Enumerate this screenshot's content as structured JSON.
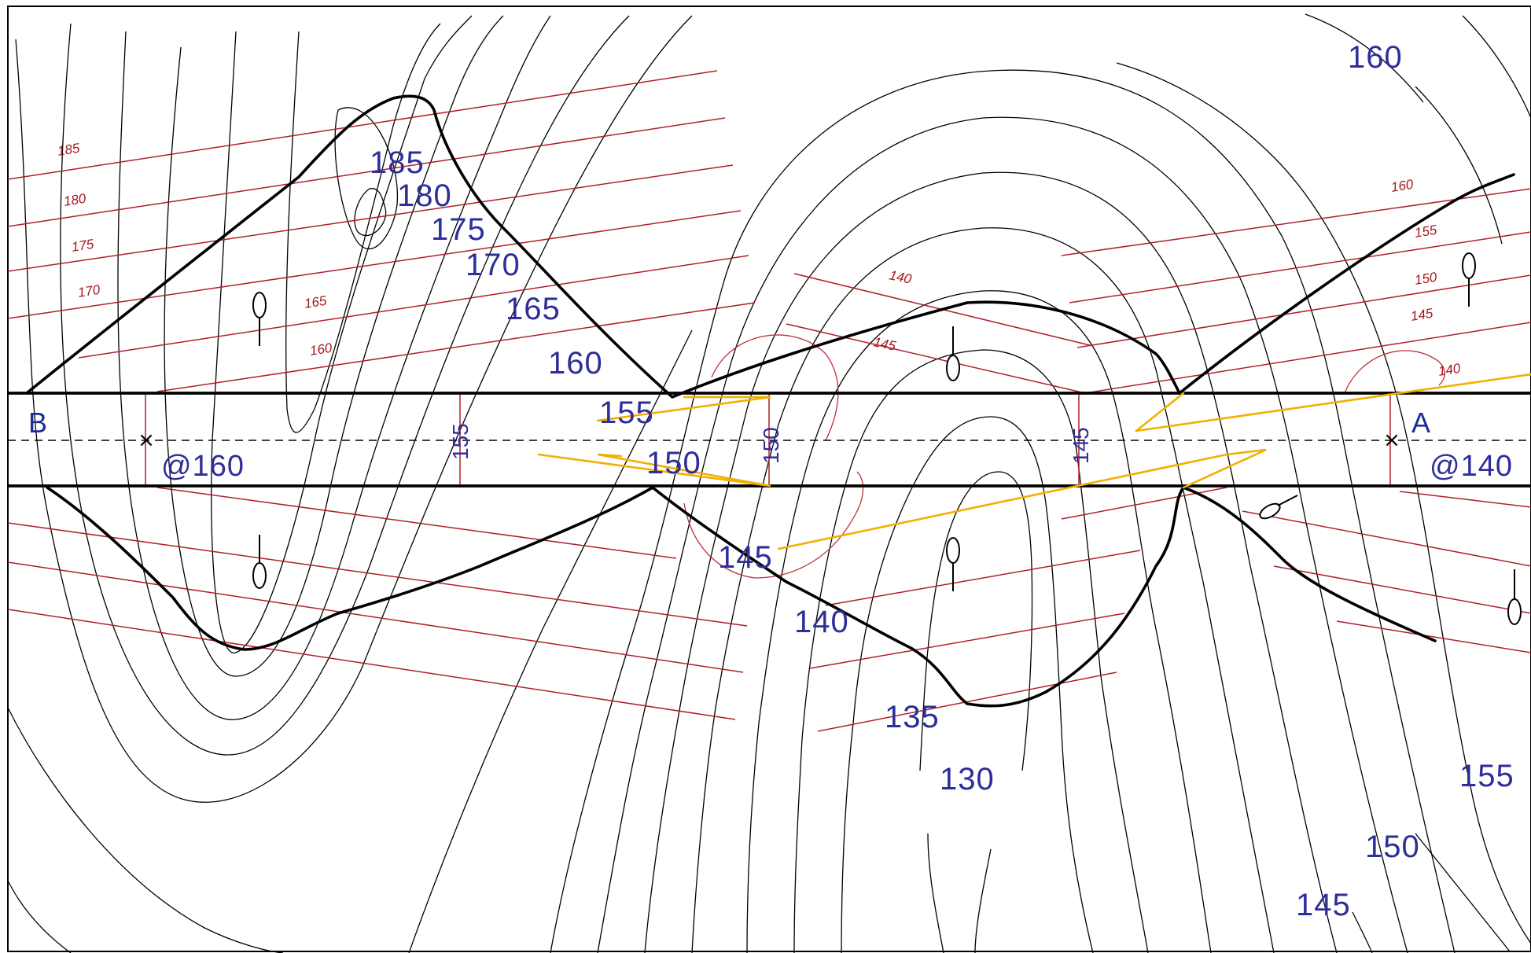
{
  "section": {
    "end_left": "B",
    "end_right": "A",
    "elev_left": "@160",
    "elev_right": "@140"
  },
  "contour_labels": [
    {
      "text": "185"
    },
    {
      "text": "180"
    },
    {
      "text": "175"
    },
    {
      "text": "170"
    },
    {
      "text": "165"
    },
    {
      "text": "160"
    },
    {
      "text": "155"
    },
    {
      "text": "150"
    },
    {
      "text": "145"
    },
    {
      "text": "140"
    },
    {
      "text": "135"
    },
    {
      "text": "130"
    },
    {
      "text": "160"
    },
    {
      "text": "155"
    },
    {
      "text": "150"
    },
    {
      "text": "145"
    }
  ],
  "hatch_labels_left": [
    {
      "text": "185"
    },
    {
      "text": "180"
    },
    {
      "text": "175"
    },
    {
      "text": "170"
    },
    {
      "text": "165"
    },
    {
      "text": "160"
    }
  ],
  "hatch_labels_mid": [
    {
      "text": "140"
    },
    {
      "text": "145"
    }
  ],
  "hatch_labels_right": [
    {
      "text": "160"
    },
    {
      "text": "155"
    },
    {
      "text": "150"
    },
    {
      "text": "145"
    },
    {
      "text": "140"
    }
  ],
  "station_labels": [
    {
      "text": "155"
    },
    {
      "text": "150"
    },
    {
      "text": "145"
    }
  ],
  "colors": {
    "contour": "#000000",
    "hatch": "#b0202a",
    "label_blue": "#2e2e9a",
    "fold_orange": "#f0b000"
  }
}
